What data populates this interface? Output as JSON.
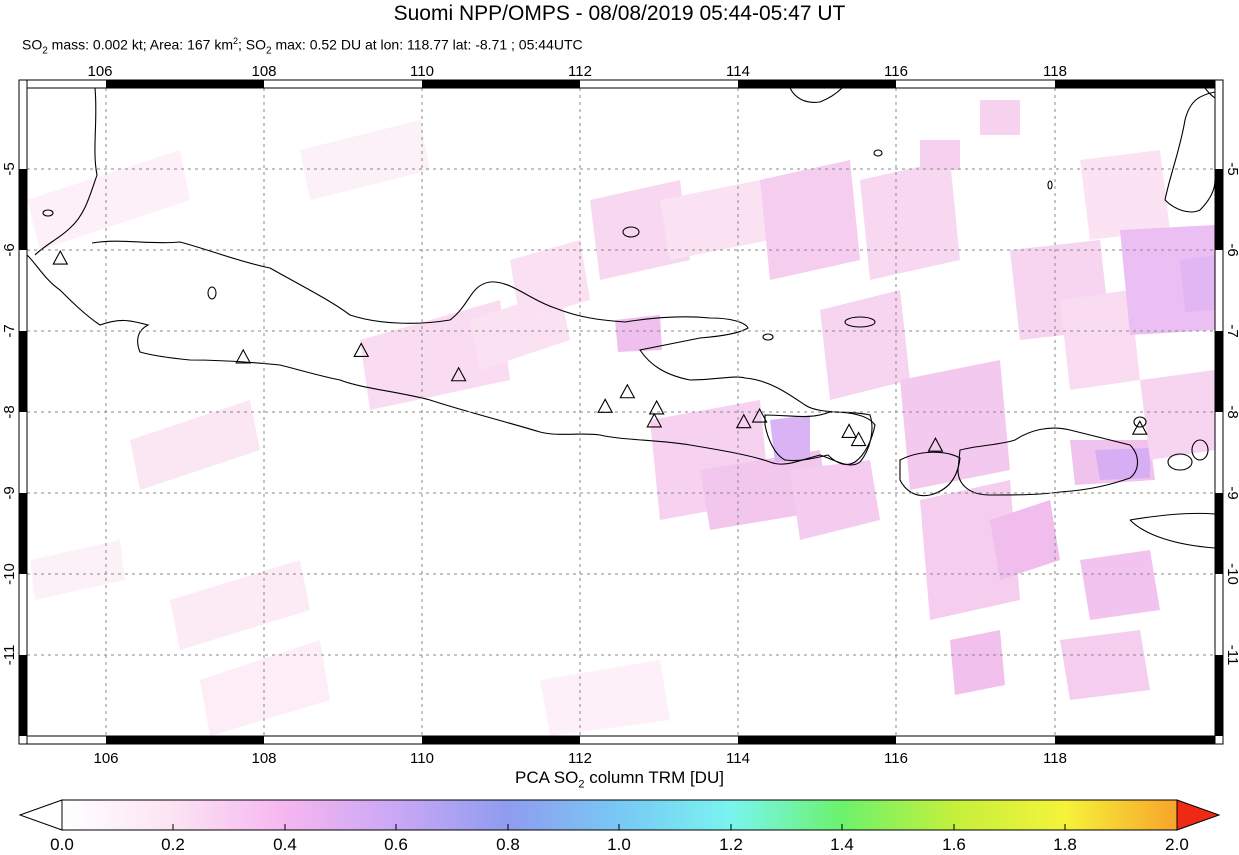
{
  "title": "Suomi NPP/OMPS - 08/08/2019 05:44-05:47 UT",
  "subtitle": {
    "so2": "SO",
    "sub2a": "2",
    "mass_text": " mass: 0.002 kt; Area: 167 km",
    "sup2": "2",
    "sep": "; SO",
    "sub2b": "2",
    "max_text": " max: 0.52 DU at lon: 118.77 lat: -8.71 ; 05:44UTC"
  },
  "map": {
    "lon_range": [
      105,
      120
    ],
    "lat_range": [
      -12,
      -4
    ],
    "lon_ticks": [
      "106",
      "108",
      "110",
      "112",
      "114",
      "116",
      "118"
    ],
    "lat_ticks": [
      "-5",
      "-6",
      "-7",
      "-8",
      "-9",
      "-10",
      "-11"
    ],
    "volcanoes": [
      {
        "lon": 105.42,
        "lat": -6.1
      },
      {
        "lon": 107.73,
        "lat": -7.32
      },
      {
        "lon": 109.22,
        "lat": -7.24
      },
      {
        "lon": 110.45,
        "lat": -7.54
      },
      {
        "lon": 112.3,
        "lat": -7.93
      },
      {
        "lon": 112.58,
        "lat": -7.75
      },
      {
        "lon": 112.95,
        "lat": -7.95
      },
      {
        "lon": 112.92,
        "lat": -8.11
      },
      {
        "lon": 114.05,
        "lat": -8.12
      },
      {
        "lon": 114.25,
        "lat": -8.05
      },
      {
        "lon": 115.38,
        "lat": -8.24
      },
      {
        "lon": 115.5,
        "lat": -8.34
      },
      {
        "lon": 116.47,
        "lat": -8.41
      },
      {
        "lon": 119.05,
        "lat": -8.2
      }
    ]
  },
  "colorbar": {
    "label_pre": "PCA SO",
    "label_sub": "2",
    "label_post": " column TRM [DU]",
    "ticks": [
      "0.0",
      "0.2",
      "0.4",
      "0.6",
      "0.8",
      "1.0",
      "1.2",
      "1.4",
      "1.6",
      "1.8",
      "2.0"
    ],
    "range": [
      0,
      2.0
    ],
    "colors": [
      "#ffffff",
      "#fbe3f3",
      "#f6b6f0",
      "#c9a8f5",
      "#8f9cf0",
      "#78c8f4",
      "#79f4f0",
      "#6cf26c",
      "#c4f03c",
      "#f6f23a",
      "#f7a42b",
      "#ee2a14"
    ]
  }
}
